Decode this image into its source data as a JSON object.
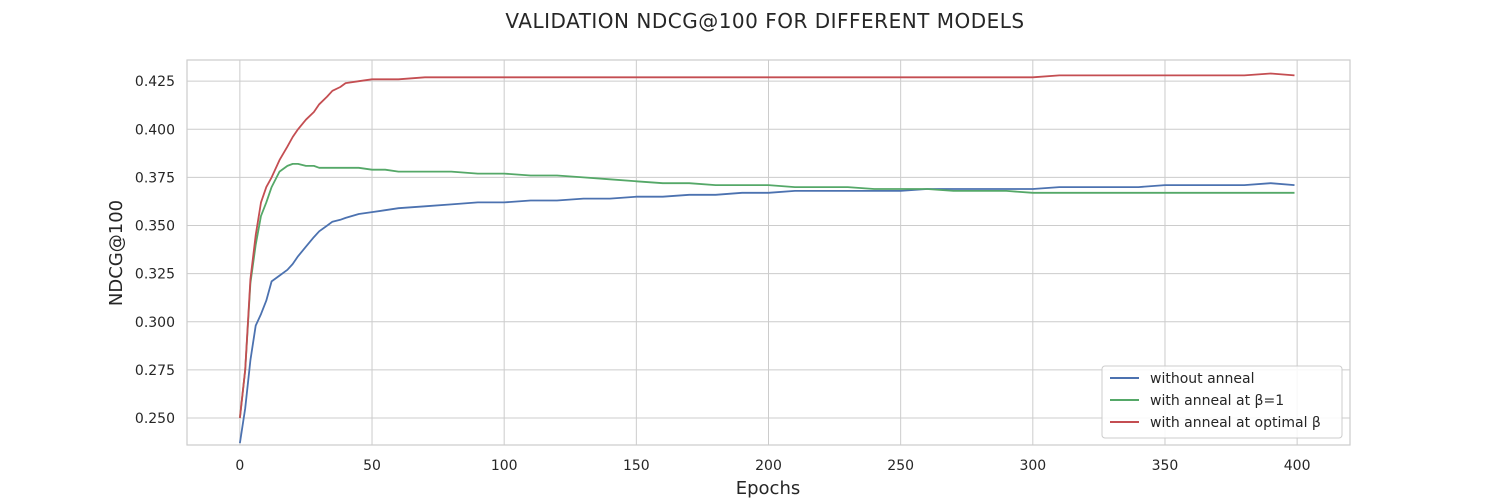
{
  "chart_data": {
    "type": "line",
    "title": "VALIDATION NDCG@100 FOR DIFFERENT MODELS",
    "xlabel": "Epochs",
    "ylabel": "NDCG@100",
    "xlim": [
      -20,
      420
    ],
    "ylim": [
      0.236,
      0.436
    ],
    "xticks": [
      0,
      50,
      100,
      150,
      200,
      250,
      300,
      350,
      400
    ],
    "yticks": [
      0.25,
      0.275,
      0.3,
      0.325,
      0.35,
      0.375,
      0.4,
      0.425
    ],
    "ytick_labels": [
      "0.250",
      "0.275",
      "0.300",
      "0.325",
      "0.350",
      "0.375",
      "0.400",
      "0.425"
    ],
    "grid": true,
    "legend_position": "lower-right",
    "x": [
      0,
      2,
      4,
      6,
      8,
      10,
      12,
      15,
      18,
      20,
      22,
      25,
      28,
      30,
      33,
      35,
      38,
      40,
      45,
      50,
      55,
      60,
      70,
      80,
      90,
      100,
      110,
      120,
      130,
      140,
      150,
      160,
      170,
      180,
      190,
      200,
      210,
      220,
      230,
      240,
      250,
      260,
      270,
      280,
      290,
      300,
      310,
      320,
      330,
      340,
      350,
      360,
      370,
      380,
      390,
      399
    ],
    "series": [
      {
        "name": "without anneal",
        "color": "#4c72b0",
        "values": [
          0.237,
          0.255,
          0.28,
          0.298,
          0.304,
          0.311,
          0.321,
          0.324,
          0.327,
          0.33,
          0.334,
          0.339,
          0.344,
          0.347,
          0.35,
          0.352,
          0.353,
          0.354,
          0.356,
          0.357,
          0.358,
          0.359,
          0.36,
          0.361,
          0.362,
          0.362,
          0.363,
          0.363,
          0.364,
          0.364,
          0.365,
          0.365,
          0.366,
          0.366,
          0.367,
          0.367,
          0.368,
          0.368,
          0.368,
          0.368,
          0.368,
          0.369,
          0.369,
          0.369,
          0.369,
          0.369,
          0.37,
          0.37,
          0.37,
          0.37,
          0.371,
          0.371,
          0.371,
          0.371,
          0.372,
          0.371
        ]
      },
      {
        "name": "with anneal at β=1",
        "color": "#55a868",
        "values": [
          0.25,
          0.275,
          0.32,
          0.34,
          0.355,
          0.362,
          0.37,
          0.378,
          0.381,
          0.382,
          0.382,
          0.381,
          0.381,
          0.38,
          0.38,
          0.38,
          0.38,
          0.38,
          0.38,
          0.379,
          0.379,
          0.378,
          0.378,
          0.378,
          0.377,
          0.377,
          0.376,
          0.376,
          0.375,
          0.374,
          0.373,
          0.372,
          0.372,
          0.371,
          0.371,
          0.371,
          0.37,
          0.37,
          0.37,
          0.369,
          0.369,
          0.369,
          0.368,
          0.368,
          0.368,
          0.367,
          0.367,
          0.367,
          0.367,
          0.367,
          0.367,
          0.367,
          0.367,
          0.367,
          0.367,
          0.367
        ]
      },
      {
        "name": "with anneal at optimal β",
        "color": "#c44e52",
        "values": [
          0.25,
          0.275,
          0.322,
          0.345,
          0.362,
          0.37,
          0.375,
          0.384,
          0.391,
          0.396,
          0.4,
          0.405,
          0.409,
          0.413,
          0.417,
          0.42,
          0.422,
          0.424,
          0.425,
          0.426,
          0.426,
          0.426,
          0.427,
          0.427,
          0.427,
          0.427,
          0.427,
          0.427,
          0.427,
          0.427,
          0.427,
          0.427,
          0.427,
          0.427,
          0.427,
          0.427,
          0.427,
          0.427,
          0.427,
          0.427,
          0.427,
          0.427,
          0.427,
          0.427,
          0.427,
          0.427,
          0.428,
          0.428,
          0.428,
          0.428,
          0.428,
          0.428,
          0.428,
          0.428,
          0.429,
          0.428
        ]
      }
    ]
  }
}
